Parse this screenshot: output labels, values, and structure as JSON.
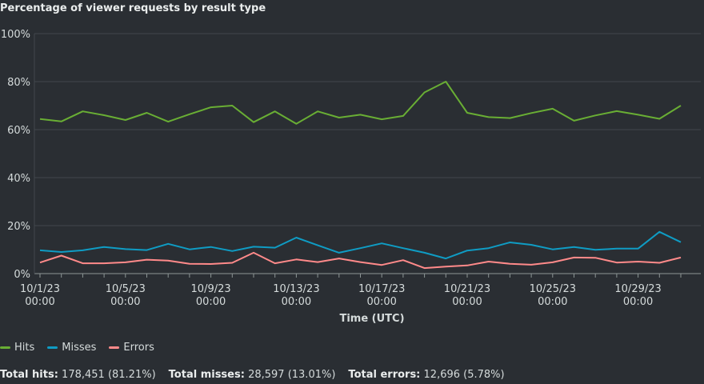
{
  "title": "Percentage of viewer requests by result type",
  "chart_data": {
    "type": "line",
    "title": "Percentage of viewer requests by result type",
    "xlabel": "Time (UTC)",
    "ylabel": "",
    "ylim": [
      0,
      100
    ],
    "yticks": [
      "0%",
      "20%",
      "40%",
      "60%",
      "80%",
      "100%"
    ],
    "xticks": [
      {
        "date": "10/1/23",
        "time": "00:00"
      },
      {
        "date": "10/5/23",
        "time": "00:00"
      },
      {
        "date": "10/9/23",
        "time": "00:00"
      },
      {
        "date": "10/13/23",
        "time": "00:00"
      },
      {
        "date": "10/17/23",
        "time": "00:00"
      },
      {
        "date": "10/21/23",
        "time": "00:00"
      },
      {
        "date": "10/25/23",
        "time": "00:00"
      },
      {
        "date": "10/29/23",
        "time": "00:00"
      }
    ],
    "x": [
      "10/1/23",
      "10/2/23",
      "10/3/23",
      "10/4/23",
      "10/5/23",
      "10/6/23",
      "10/7/23",
      "10/8/23",
      "10/9/23",
      "10/10/23",
      "10/11/23",
      "10/12/23",
      "10/13/23",
      "10/14/23",
      "10/15/23",
      "10/16/23",
      "10/17/23",
      "10/18/23",
      "10/19/23",
      "10/20/23",
      "10/21/23",
      "10/22/23",
      "10/23/23",
      "10/24/23",
      "10/25/23",
      "10/26/23",
      "10/27/23",
      "10/28/23",
      "10/29/23",
      "10/30/23",
      "10/31/23"
    ],
    "series": [
      {
        "name": "Hits",
        "color": "#69ae34",
        "values": [
          64.4,
          63.4,
          67.6,
          66.0,
          64.0,
          67.0,
          63.3,
          66.4,
          69.3,
          70.0,
          63.1,
          67.6,
          62.4,
          67.6,
          65.0,
          66.2,
          64.3,
          65.7,
          75.5,
          80.0,
          67.0,
          65.2,
          64.8,
          66.9,
          68.7,
          63.7,
          65.9,
          67.7,
          66.2,
          64.5,
          70.0
        ]
      },
      {
        "name": "Misses",
        "color": "#0f9cc4",
        "values": [
          9.7,
          9.0,
          9.7,
          11.1,
          10.2,
          9.8,
          12.4,
          10.1,
          11.1,
          9.4,
          11.2,
          10.8,
          15.0,
          11.8,
          8.7,
          10.6,
          12.6,
          10.6,
          8.7,
          6.3,
          9.6,
          10.6,
          13.0,
          12.0,
          10.1,
          11.1,
          9.9,
          10.4,
          10.4,
          17.4,
          13.1
        ]
      },
      {
        "name": "Errors",
        "color": "#ff8a8a",
        "values": [
          4.6,
          7.5,
          4.3,
          4.3,
          4.7,
          5.8,
          5.4,
          4.1,
          4.0,
          4.5,
          8.7,
          4.3,
          5.9,
          4.8,
          6.3,
          4.8,
          3.6,
          5.6,
          2.3,
          2.9,
          3.4,
          5.0,
          4.1,
          3.7,
          4.7,
          6.7,
          6.6,
          4.6,
          5.0,
          4.5,
          6.7
        ]
      }
    ]
  },
  "totals": {
    "hits_label": "Total hits:",
    "hits_value": "178,451 (81.21%)",
    "misses_label": "Total misses:",
    "misses_value": "28,597 (13.01%)",
    "errors_label": "Total errors:",
    "errors_value": "12,696 (5.78%)"
  }
}
